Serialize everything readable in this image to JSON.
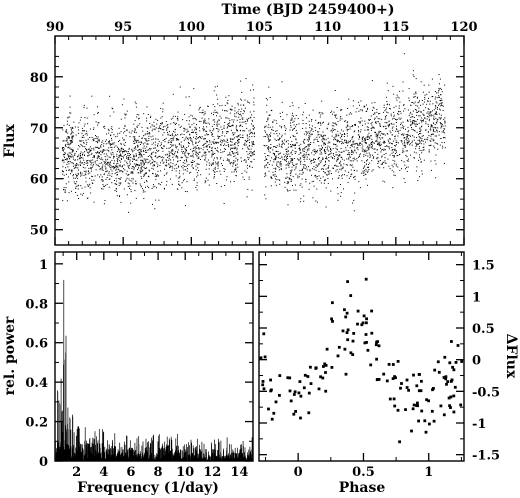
{
  "chart_data": [
    {
      "type": "scatter",
      "name": "light-curve",
      "xlabel": "Time (BJD 2459400+)",
      "ylabel": "Flux",
      "xlim": [
        90,
        120
      ],
      "ylim": [
        47,
        88
      ],
      "xticks": [
        "90",
        "95",
        "100",
        "105",
        "110",
        "115",
        "120"
      ],
      "yticks": [
        "50",
        "60",
        "70",
        "80"
      ],
      "x_tick_position": "top",
      "gap": [
        104.6,
        105.3
      ],
      "trend_points": [
        [
          90.5,
          64.5
        ],
        [
          95,
          64.5
        ],
        [
          100,
          66.5
        ],
        [
          104.5,
          68.5
        ],
        [
          105.3,
          66
        ],
        [
          108,
          65.5
        ],
        [
          110,
          66
        ],
        [
          115,
          68.5
        ],
        [
          118.5,
          72
        ]
      ],
      "scatter_sd": 3.8,
      "n_points": 4000,
      "marker_color": "#000000"
    },
    {
      "type": "line",
      "name": "periodogram",
      "xlabel": "Frequency (1/day)",
      "ylabel": "rel. power",
      "xlim": [
        0.4,
        15
      ],
      "ylim": [
        0,
        1.06
      ],
      "xticks": [
        "2",
        "4",
        "6",
        "8",
        "10",
        "12",
        "14"
      ],
      "yticks": [
        "0",
        "0.2",
        "0.4",
        "0.6",
        "0.8",
        "1"
      ],
      "peaks": [
        {
          "x": 0.6,
          "y": 0.52
        },
        {
          "x": 0.7,
          "y": 0.4
        },
        {
          "x": 0.85,
          "y": 0.55
        },
        {
          "x": 0.95,
          "y": 0.34
        },
        {
          "x": 1.05,
          "y": 0.99
        },
        {
          "x": 1.2,
          "y": 0.82
        },
        {
          "x": 1.35,
          "y": 0.36
        },
        {
          "x": 1.5,
          "y": 0.28
        },
        {
          "x": 1.7,
          "y": 0.3
        },
        {
          "x": 2.1,
          "y": 0.22
        },
        {
          "x": 2.6,
          "y": 0.14
        },
        {
          "x": 3.2,
          "y": 0.17
        },
        {
          "x": 5.7,
          "y": 0.13
        },
        {
          "x": 12.5,
          "y": 0.13
        }
      ],
      "noise_level": 0.05,
      "line_color": "#000000"
    },
    {
      "type": "scatter",
      "name": "phased-light-curve",
      "xlabel": "Phase",
      "ylabel": "ΔFlux",
      "ylabel_position": "right",
      "xlim": [
        -0.3,
        1.27
      ],
      "ylim": [
        -1.6,
        1.7
      ],
      "xticks": [
        "0",
        "0.5",
        "1"
      ],
      "yticks": [
        "-1.5",
        "-1",
        "-0.5",
        "0",
        "0.5",
        "1",
        "1.5"
      ],
      "y_tick_position": "right",
      "profile_points": [
        [
          -0.3,
          -0.35
        ],
        [
          0,
          -0.55
        ],
        [
          0.1,
          -0.45
        ],
        [
          0.2,
          -0.2
        ],
        [
          0.3,
          0.25
        ],
        [
          0.4,
          0.6
        ],
        [
          0.5,
          0.6
        ],
        [
          0.55,
          0.45
        ],
        [
          0.65,
          0.0
        ],
        [
          0.75,
          -0.35
        ],
        [
          0.85,
          -0.55
        ],
        [
          1.0,
          -0.55
        ],
        [
          1.1,
          -0.35
        ],
        [
          1.27,
          -0.2
        ]
      ],
      "scatter_sd": 0.33,
      "n_points": 160,
      "marker_color": "#000000"
    }
  ]
}
